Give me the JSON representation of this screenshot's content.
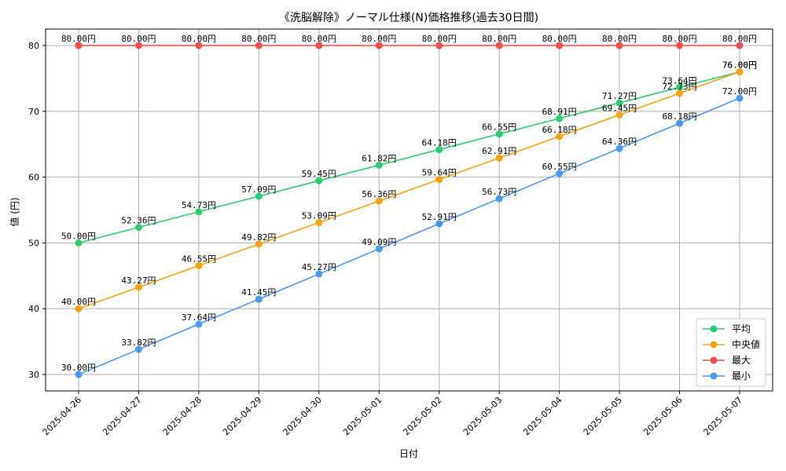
{
  "chart_data": {
    "type": "line",
    "title": "《洗脳解除》ノーマル仕様(N)価格推移(過去30日間)",
    "xlabel": "日付",
    "ylabel": "値 (円)",
    "ylim": [
      27.5,
      82.5
    ],
    "yticks": [
      30,
      40,
      50,
      60,
      70,
      80
    ],
    "grid": true,
    "legend_position": "bottom-right",
    "label_suffix": "円",
    "categories": [
      "2025-04-26",
      "2025-04-27",
      "2025-04-28",
      "2025-04-29",
      "2025-04-30",
      "2025-05-01",
      "2025-05-02",
      "2025-05-03",
      "2025-05-04",
      "2025-05-05",
      "2025-05-06",
      "2025-05-07"
    ],
    "series": [
      {
        "name": "平均",
        "color": "#2ecc71",
        "values": [
          50.0,
          52.36,
          54.73,
          57.09,
          59.45,
          61.82,
          64.18,
          66.55,
          68.91,
          71.27,
          73.64,
          76.0
        ]
      },
      {
        "name": "中央値",
        "color": "#f5a311",
        "values": [
          40.0,
          43.27,
          46.55,
          49.82,
          53.09,
          56.36,
          59.64,
          62.91,
          66.18,
          69.45,
          72.73,
          76.0
        ]
      },
      {
        "name": "最大",
        "color": "#f04e4e",
        "values": [
          80.0,
          80.0,
          80.0,
          80.0,
          80.0,
          80.0,
          80.0,
          80.0,
          80.0,
          80.0,
          80.0,
          80.0
        ]
      },
      {
        "name": "最小",
        "color": "#4a98f0",
        "values": [
          30.0,
          33.82,
          37.64,
          41.45,
          45.27,
          49.09,
          52.91,
          56.73,
          60.55,
          64.36,
          68.18,
          72.0
        ]
      }
    ]
  }
}
